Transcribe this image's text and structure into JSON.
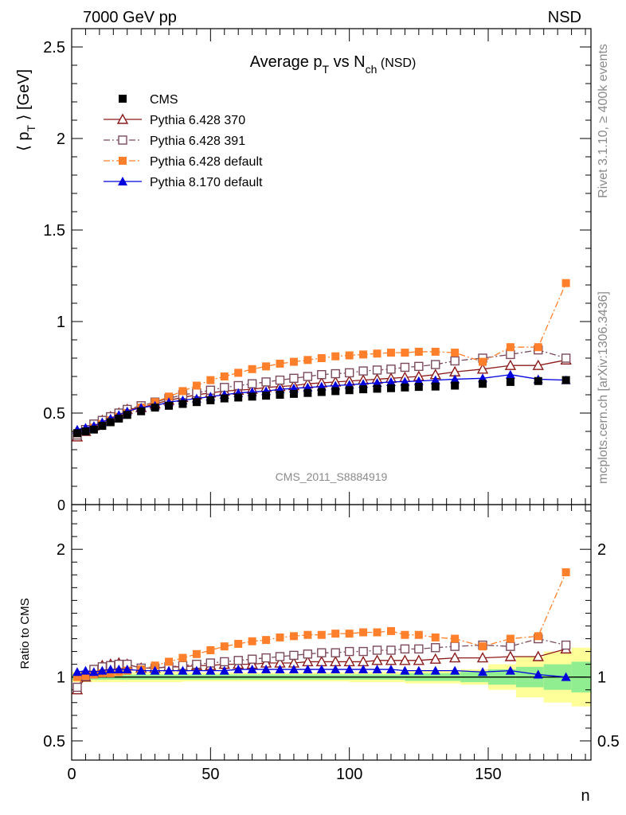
{
  "header": {
    "left": "7000 GeV pp",
    "right": "NSD"
  },
  "side_text": {
    "rivet": "Rivet 3.1.10, ≥ 400k events",
    "mcplots": "mcplots.cern.ch [arXiv:1306.3436]"
  },
  "watermark": "CMS_2011_S8884919",
  "chart_data": [
    {
      "type": "scatter",
      "title": {
        "main": "Average p",
        "sub1": "T",
        "mid": " vs N",
        "sub2": "ch",
        "tail": " (NSD)"
      },
      "ylabel": {
        "pre": "⟨ p",
        "sub": "T",
        "post": " ⟩ [GeV]"
      },
      "xlim": [
        0,
        187
      ],
      "ylim": [
        0,
        2.6
      ],
      "y_ticks": [
        0.5,
        1,
        1.5,
        2,
        2.5
      ],
      "y_tick_labels": [
        "0.5",
        "1",
        "1.5",
        "2",
        "2.5"
      ],
      "y_bottom_label": "0",
      "legend_position": "top-left",
      "series": [
        {
          "name": "CMS",
          "color": "#000000",
          "marker": "filled-square",
          "line": "none",
          "x": [
            2,
            5,
            8,
            11,
            14,
            17,
            20,
            25,
            30,
            35,
            40,
            45,
            50,
            55,
            60,
            65,
            70,
            75,
            80,
            85,
            90,
            95,
            100,
            105,
            110,
            115,
            120,
            125,
            131,
            138,
            148,
            158,
            168,
            178
          ],
          "y": [
            0.39,
            0.4,
            0.41,
            0.43,
            0.45,
            0.47,
            0.49,
            0.51,
            0.53,
            0.54,
            0.55,
            0.56,
            0.57,
            0.58,
            0.585,
            0.59,
            0.595,
            0.6,
            0.605,
            0.61,
            0.615,
            0.62,
            0.625,
            0.63,
            0.633,
            0.636,
            0.64,
            0.643,
            0.645,
            0.65,
            0.66,
            0.67,
            0.675,
            0.68
          ]
        },
        {
          "name": "Pythia 6.428 370",
          "color": "#8b1a1a",
          "marker": "open-triangle",
          "line": "solid",
          "x": [
            2,
            5,
            8,
            11,
            14,
            17,
            20,
            25,
            30,
            35,
            40,
            45,
            50,
            55,
            60,
            65,
            70,
            75,
            80,
            85,
            90,
            95,
            100,
            105,
            110,
            115,
            120,
            125,
            131,
            138,
            148,
            158,
            168,
            178
          ],
          "y": [
            0.37,
            0.4,
            0.43,
            0.46,
            0.48,
            0.5,
            0.52,
            0.53,
            0.55,
            0.57,
            0.585,
            0.6,
            0.61,
            0.62,
            0.625,
            0.63,
            0.64,
            0.645,
            0.65,
            0.66,
            0.665,
            0.67,
            0.675,
            0.68,
            0.685,
            0.69,
            0.695,
            0.7,
            0.71,
            0.725,
            0.74,
            0.76,
            0.76,
            0.79
          ]
        },
        {
          "name": "Pythia 6.428 391",
          "color": "#7a4a5a",
          "marker": "open-square",
          "line": "dash-dot",
          "x": [
            2,
            5,
            8,
            11,
            14,
            17,
            20,
            25,
            30,
            35,
            40,
            45,
            50,
            55,
            60,
            65,
            70,
            75,
            80,
            85,
            90,
            95,
            100,
            105,
            110,
            115,
            120,
            125,
            131,
            138,
            148,
            158,
            168,
            178
          ],
          "y": [
            0.38,
            0.41,
            0.44,
            0.46,
            0.48,
            0.5,
            0.52,
            0.54,
            0.56,
            0.58,
            0.6,
            0.61,
            0.625,
            0.64,
            0.65,
            0.66,
            0.67,
            0.68,
            0.69,
            0.7,
            0.71,
            0.715,
            0.72,
            0.73,
            0.735,
            0.74,
            0.75,
            0.755,
            0.765,
            0.785,
            0.8,
            0.82,
            0.845,
            0.8
          ]
        },
        {
          "name": "Pythia 6.428 default",
          "color": "#ff7f2a",
          "marker": "filled-square",
          "line": "dash-dot",
          "x": [
            2,
            5,
            8,
            11,
            14,
            17,
            20,
            25,
            30,
            35,
            40,
            45,
            50,
            55,
            60,
            65,
            70,
            75,
            80,
            85,
            90,
            95,
            100,
            105,
            110,
            115,
            120,
            125,
            131,
            138,
            148,
            158,
            168,
            178
          ],
          "y": [
            0.39,
            0.4,
            0.42,
            0.44,
            0.46,
            0.48,
            0.5,
            0.53,
            0.56,
            0.59,
            0.62,
            0.65,
            0.68,
            0.7,
            0.72,
            0.74,
            0.755,
            0.77,
            0.78,
            0.79,
            0.8,
            0.81,
            0.815,
            0.82,
            0.825,
            0.83,
            0.83,
            0.835,
            0.835,
            0.83,
            0.78,
            0.86,
            0.86,
            1.21
          ]
        },
        {
          "name": "Pythia 8.170 default",
          "color": "#0000dd",
          "marker": "filled-triangle",
          "line": "solid",
          "x": [
            2,
            5,
            8,
            11,
            14,
            17,
            20,
            25,
            30,
            35,
            40,
            45,
            50,
            55,
            60,
            65,
            70,
            75,
            80,
            85,
            90,
            95,
            100,
            105,
            110,
            115,
            120,
            125,
            131,
            138,
            148,
            158,
            168,
            178
          ],
          "y": [
            0.41,
            0.42,
            0.43,
            0.45,
            0.47,
            0.49,
            0.51,
            0.53,
            0.54,
            0.56,
            0.57,
            0.58,
            0.59,
            0.6,
            0.61,
            0.615,
            0.62,
            0.63,
            0.635,
            0.64,
            0.645,
            0.65,
            0.655,
            0.66,
            0.665,
            0.67,
            0.672,
            0.675,
            0.68,
            0.685,
            0.69,
            0.71,
            0.685,
            0.68
          ]
        }
      ]
    },
    {
      "type": "scatter",
      "ylabel": "Ratio to CMS",
      "xlabel": "n",
      "xlim": [
        0,
        187
      ],
      "ylim": [
        0.35,
        2.35
      ],
      "x_ticks": [
        0,
        50,
        100,
        150
      ],
      "x_tick_labels": [
        "0",
        "50",
        "100",
        "150"
      ],
      "y_tick_labels_left": [
        "0.5",
        "1",
        "2"
      ],
      "y_tick_labels_right": [
        "0.5",
        "1",
        "2"
      ],
      "y_ticks": [
        0.5,
        1,
        2
      ],
      "reference_line": 1,
      "uncertainty_bands": {
        "x_edges": [
          0,
          20,
          40,
          60,
          80,
          100,
          120,
          140,
          150,
          160,
          170,
          180,
          187
        ],
        "outer_yellow": [
          0.04,
          0.04,
          0.035,
          0.035,
          0.035,
          0.04,
          0.05,
          0.06,
          0.1,
          0.16,
          0.2,
          0.23
        ],
        "inner_green": [
          0.02,
          0.02,
          0.02,
          0.02,
          0.02,
          0.02,
          0.03,
          0.04,
          0.06,
          0.08,
          0.1,
          0.12
        ]
      },
      "series": [
        {
          "name": "Pythia 6.428 370",
          "color": "#8b1a1a",
          "marker": "open-triangle",
          "line": "solid",
          "x": [
            2,
            5,
            8,
            11,
            14,
            17,
            20,
            25,
            30,
            35,
            40,
            45,
            50,
            55,
            60,
            65,
            70,
            75,
            80,
            85,
            90,
            95,
            100,
            105,
            110,
            115,
            120,
            125,
            131,
            138,
            148,
            158,
            168,
            178
          ],
          "y": [
            0.9,
            1.0,
            1.05,
            1.09,
            1.1,
            1.11,
            1.1,
            1.07,
            1.07,
            1.08,
            1.08,
            1.09,
            1.09,
            1.1,
            1.1,
            1.1,
            1.11,
            1.11,
            1.11,
            1.12,
            1.12,
            1.12,
            1.12,
            1.12,
            1.13,
            1.13,
            1.13,
            1.13,
            1.14,
            1.15,
            1.15,
            1.16,
            1.16,
            1.22
          ]
        },
        {
          "name": "Pythia 6.428 391",
          "color": "#7a4a5a",
          "marker": "open-square",
          "line": "dash-dot",
          "x": [
            2,
            5,
            8,
            11,
            14,
            17,
            20,
            25,
            30,
            35,
            40,
            45,
            50,
            55,
            60,
            65,
            70,
            75,
            80,
            85,
            90,
            95,
            100,
            105,
            110,
            115,
            120,
            125,
            131,
            138,
            148,
            158,
            168,
            178
          ],
          "y": [
            0.92,
            1.01,
            1.06,
            1.08,
            1.09,
            1.1,
            1.1,
            1.07,
            1.07,
            1.08,
            1.09,
            1.1,
            1.11,
            1.12,
            1.13,
            1.14,
            1.15,
            1.16,
            1.17,
            1.18,
            1.19,
            1.19,
            1.2,
            1.2,
            1.21,
            1.21,
            1.22,
            1.22,
            1.23,
            1.24,
            1.25,
            1.24,
            1.3,
            1.25
          ]
        },
        {
          "name": "Pythia 6.428 default",
          "color": "#ff7f2a",
          "marker": "filled-square",
          "line": "dash-dot",
          "x": [
            2,
            5,
            8,
            11,
            14,
            17,
            20,
            25,
            30,
            35,
            40,
            45,
            50,
            55,
            60,
            65,
            70,
            75,
            80,
            85,
            90,
            95,
            100,
            105,
            110,
            115,
            120,
            125,
            131,
            138,
            148,
            158,
            168,
            178
          ],
          "y": [
            1.0,
            1.01,
            1.02,
            1.03,
            1.03,
            1.04,
            1.05,
            1.06,
            1.09,
            1.12,
            1.15,
            1.18,
            1.21,
            1.24,
            1.26,
            1.28,
            1.29,
            1.31,
            1.32,
            1.33,
            1.33,
            1.34,
            1.34,
            1.35,
            1.35,
            1.36,
            1.33,
            1.33,
            1.31,
            1.3,
            1.24,
            1.3,
            1.32,
            1.82
          ]
        },
        {
          "name": "Pythia 8.170 default",
          "color": "#0000dd",
          "marker": "filled-triangle",
          "line": "solid",
          "x": [
            2,
            5,
            8,
            11,
            14,
            17,
            20,
            25,
            30,
            35,
            40,
            45,
            50,
            55,
            60,
            65,
            70,
            75,
            80,
            85,
            90,
            95,
            100,
            105,
            110,
            115,
            120,
            125,
            131,
            138,
            148,
            158,
            168,
            178
          ],
          "y": [
            1.04,
            1.05,
            1.04,
            1.05,
            1.06,
            1.06,
            1.06,
            1.05,
            1.05,
            1.05,
            1.05,
            1.05,
            1.05,
            1.05,
            1.06,
            1.06,
            1.06,
            1.06,
            1.06,
            1.06,
            1.06,
            1.06,
            1.06,
            1.06,
            1.06,
            1.06,
            1.05,
            1.05,
            1.05,
            1.05,
            1.04,
            1.05,
            1.02,
            1.0
          ]
        }
      ]
    }
  ]
}
